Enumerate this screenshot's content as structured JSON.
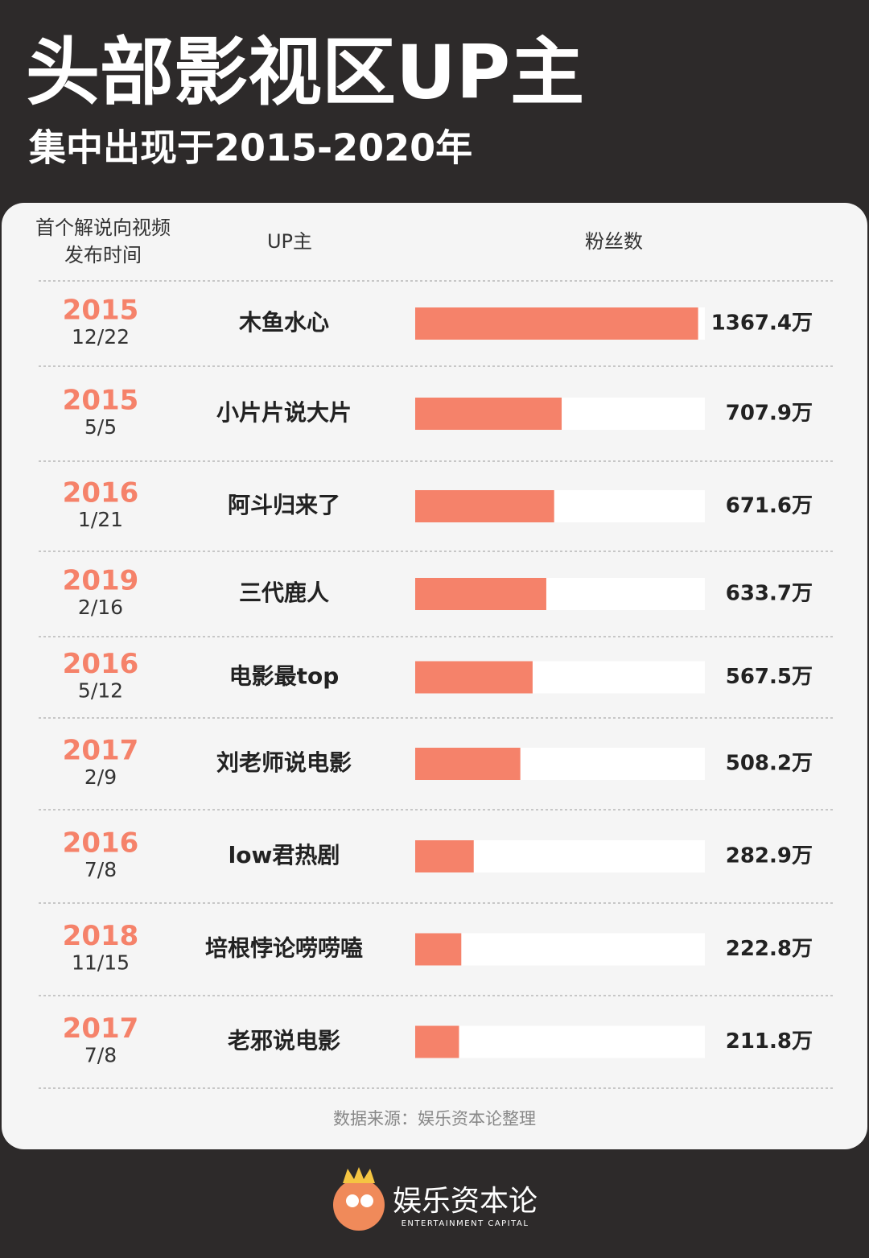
{
  "chart_data": {
    "type": "bar",
    "orientation": "horizontal",
    "title": "头部影视区UP主",
    "subtitle": "集中出现于2015-2020年",
    "date_header": [
      "首个解说向视频",
      "发布时间"
    ],
    "name_header": "UP主",
    "value_header": "粉丝数",
    "years": [
      "2015",
      "2015",
      "2016",
      "2019",
      "2016",
      "2017",
      "2016",
      "2018",
      "2017"
    ],
    "dates": [
      "12/22",
      "5/5",
      "1/21",
      "2/16",
      "5/12",
      "2/9",
      "7/8",
      "11/15",
      "7/8"
    ],
    "categories": [
      "木鱼水心",
      "小片片说大片",
      "阿斗归来了",
      "三代鹿人",
      "电影最top",
      "刘老师说电影",
      "low君热剧",
      "培根悖论唠唠嗑",
      "老邪说电影"
    ],
    "values": [
      1367.4,
      707.9,
      671.6,
      633.7,
      567.5,
      508.2,
      282.9,
      222.8,
      211.8
    ],
    "value_labels": [
      "1367.4万",
      "707.9万",
      "671.6万",
      "633.7万",
      "567.5万",
      "508.2万",
      "282.9万",
      "222.8万",
      "211.8万"
    ],
    "xlim": [
      0,
      1400
    ],
    "color": "#f5826a",
    "source": "数据来源：娱乐资本论整理",
    "logo": {
      "name": "娱乐资本论",
      "english": "ENTERTAINMENT CAPITAL"
    }
  }
}
